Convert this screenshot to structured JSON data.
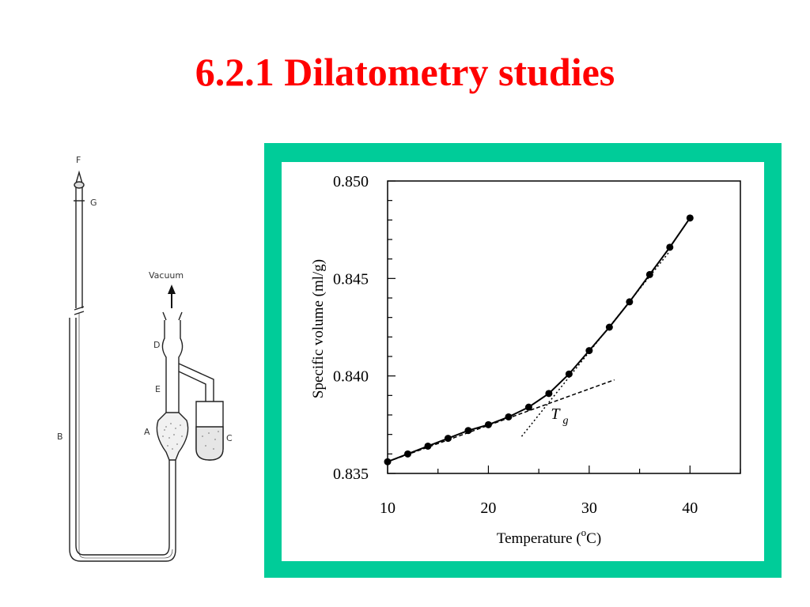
{
  "slide": {
    "title": "6.2.1 Dilatometry studies"
  },
  "apparatus": {
    "labels": {
      "F": "F",
      "G": "G",
      "vacuum": "Vacuum",
      "D": "D",
      "E": "E",
      "A": "A",
      "B": "B",
      "C": "C"
    },
    "icons": [
      "dilatometer-apparatus-icon",
      "vacuum-arrow-icon"
    ]
  },
  "chart_data": {
    "type": "line",
    "xlabel_main": "Temperature (",
    "xlabel_sup": "o",
    "xlabel_end": "C)",
    "ylabel": "Specific volume (ml/g)",
    "xlim": [
      10,
      45
    ],
    "ylim": [
      0.835,
      0.85
    ],
    "xticks": [
      10,
      20,
      30,
      40
    ],
    "yticks": [
      0.835,
      0.84,
      0.845,
      0.85
    ],
    "xtick_labels": [
      "10",
      "20",
      "30",
      "40"
    ],
    "ytick_labels": [
      "0.835",
      "0.840",
      "0.845",
      "0.850"
    ],
    "series": [
      {
        "style": "solid-with-markers",
        "x": [
          10,
          12,
          14,
          16,
          18,
          20,
          22,
          24,
          26,
          28,
          30,
          32,
          34,
          36,
          38,
          40
        ],
        "y": [
          0.8356,
          0.836,
          0.8364,
          0.8368,
          0.8372,
          0.8375,
          0.8379,
          0.8384,
          0.8391,
          0.8401,
          0.8413,
          0.8425,
          0.8438,
          0.8452,
          0.8466,
          0.8481
        ]
      }
    ],
    "tangent_lines": [
      {
        "style": "dashed",
        "x": [
          10,
          32.5
        ],
        "y": [
          0.8356,
          0.8398
        ]
      },
      {
        "style": "dotted",
        "x": [
          23.3,
          38
        ],
        "y": [
          0.8369,
          0.8464
        ]
      }
    ],
    "annotation": {
      "text_main": "T",
      "text_sub": "g",
      "x": 26.2,
      "y": 0.8378
    },
    "grid": false,
    "colors": {
      "frame": "#00cc99",
      "line": "#000000"
    }
  }
}
